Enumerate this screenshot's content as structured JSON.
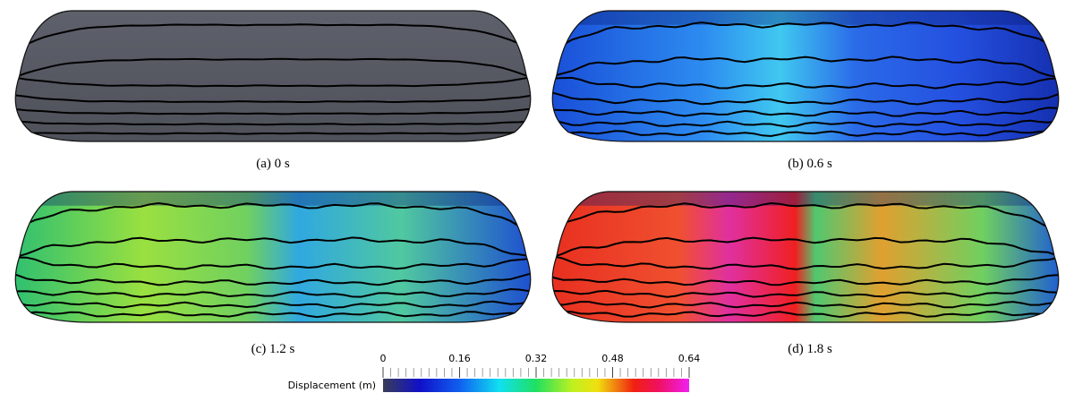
{
  "panels": [
    {
      "caption": "(a)  0 s"
    },
    {
      "caption": "(b)  0.6 s"
    },
    {
      "caption": "(c)  1.2 s"
    },
    {
      "caption": "(d)  1.8 s"
    }
  ],
  "colorbar": {
    "title": "Displacement (m)",
    "range": [
      0,
      0.64
    ],
    "ticks": [
      0,
      0.16,
      0.32,
      0.48,
      0.64
    ]
  }
}
